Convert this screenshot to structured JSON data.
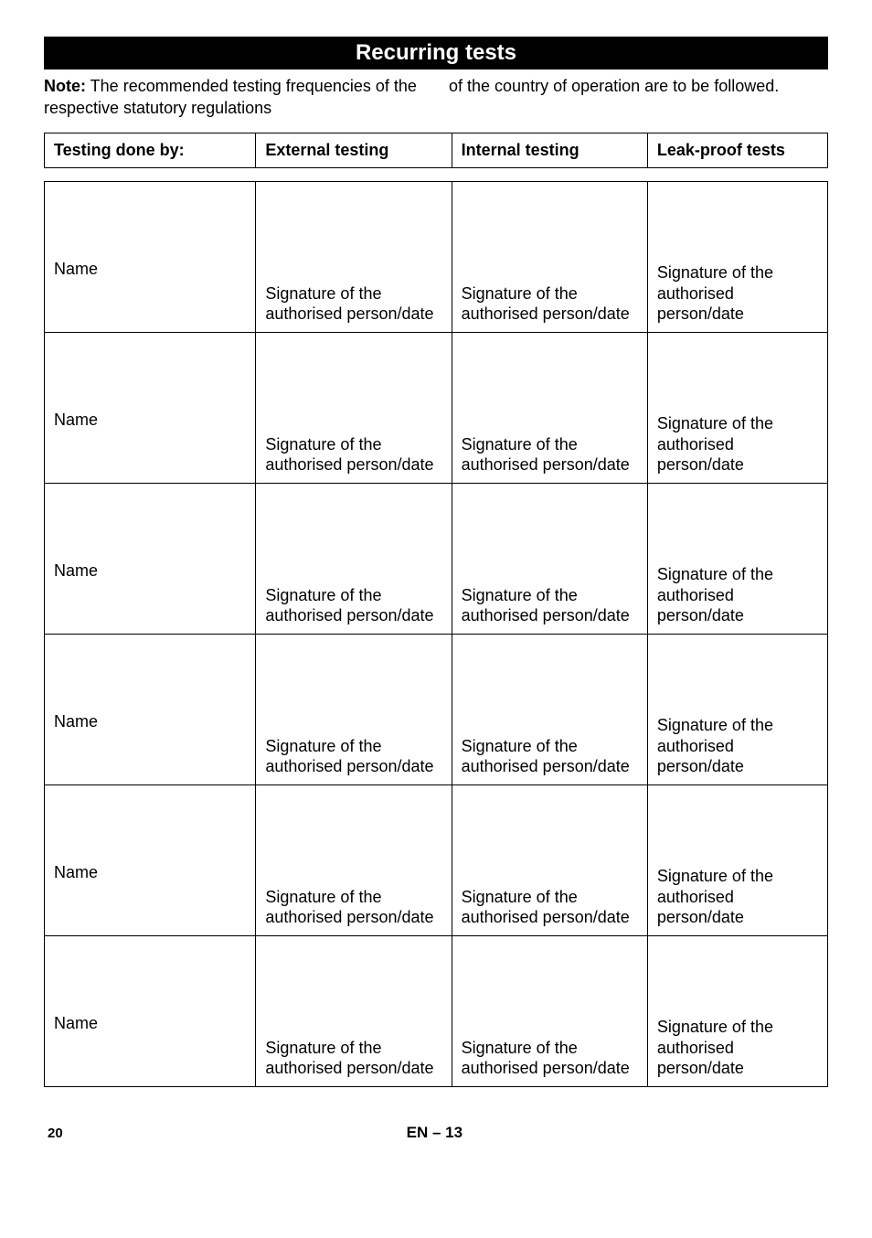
{
  "heading": "Recurring tests",
  "note": {
    "label": "Note:",
    "left_text": " The recommended testing frequencies of the respective statutory regulations",
    "right_text": "of the country of operation are to be followed."
  },
  "header_row": {
    "c0": "Testing done by:",
    "c1": "External testing",
    "c2": "Internal testing",
    "c3": "Leak-proof tests"
  },
  "body_rows": [
    {
      "name": "Name",
      "sig": "Signature of the authorised person/date"
    },
    {
      "name": "Name",
      "sig": "Signature of the authorised person/date"
    },
    {
      "name": "Name",
      "sig": "Signature of the authorised person/date"
    },
    {
      "name": "Name",
      "sig": "Signature of the authorised person/date"
    },
    {
      "name": "Name",
      "sig": "Signature of the authorised person/date"
    },
    {
      "name": "Name",
      "sig": "Signature of the authorised person/date"
    }
  ],
  "footer": {
    "page": "20",
    "lang": "EN – 13"
  },
  "colors": {
    "bg": "#ffffff",
    "text": "#000000",
    "heading_bg": "#000000",
    "heading_text": "#ffffff",
    "border": "#000000"
  }
}
